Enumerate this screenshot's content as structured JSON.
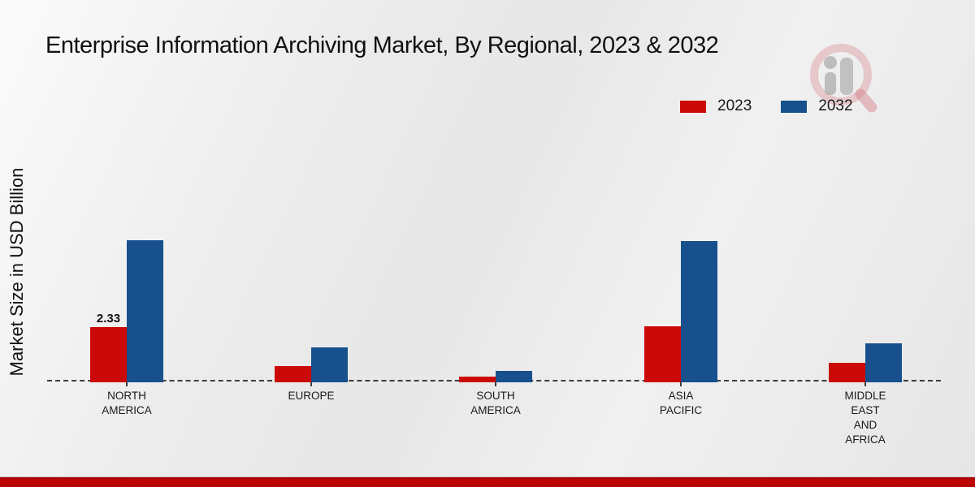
{
  "chart_data": {
    "type": "bar",
    "title": "Enterprise Information Archiving Market, By Regional, 2023 & 2032",
    "ylabel": "Market Size in USD Billion",
    "xlabel": "",
    "categories": [
      "NORTH AMERICA",
      "EUROPE",
      "SOUTH AMERICA",
      "ASIA PACIFIC",
      "MIDDLE EAST AND AFRICA"
    ],
    "category_label_lines": [
      [
        "NORTH",
        "AMERICA"
      ],
      [
        "EUROPE"
      ],
      [
        "SOUTH",
        "AMERICA"
      ],
      [
        "ASIA",
        "PACIFIC"
      ],
      [
        "MIDDLE",
        "EAST",
        "AND",
        "AFRICA"
      ]
    ],
    "series": [
      {
        "name": "2023",
        "color": "#cb0909",
        "values": [
          2.33,
          0.63,
          0.17,
          2.35,
          0.77
        ]
      },
      {
        "name": "2032",
        "color": "#17508c",
        "values": [
          6.08,
          1.43,
          0.42,
          6.05,
          1.6
        ]
      }
    ],
    "annotations": [
      {
        "category_index": 0,
        "series_index": 0,
        "text": "2.33"
      }
    ],
    "ylim": [
      0,
      7
    ],
    "grid": false,
    "baseline_style": "dashed",
    "legend_position": "top-right"
  },
  "watermark": {
    "name": "market-research-logo",
    "ring_color": "#d98d96",
    "glyph_color": "#9b9b9b"
  },
  "footer": {
    "band_color": "#b80404"
  }
}
